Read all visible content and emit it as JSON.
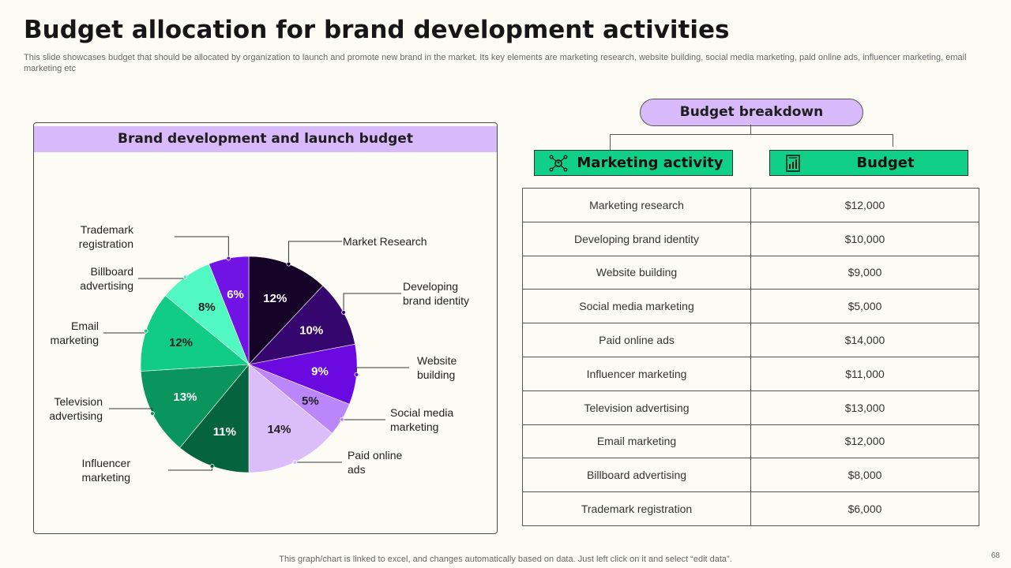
{
  "header": {
    "title": "Budget allocation for brand development activities",
    "subtitle": "This slide showcases budget that should be allocated by organization to launch and promote new brand in the market. Its key elements are marketing research, website building, social media marketing, paid online ads, influencer marketing, email marketing etc"
  },
  "chart_panel": {
    "title": "Brand development and launch budget"
  },
  "chart_data": {
    "type": "pie",
    "title": "Brand development and launch budget",
    "slices": [
      {
        "label": "Market Research",
        "value": 12,
        "display": "12%",
        "color": "#160428"
      },
      {
        "label": "Developing brand identity",
        "value": 10,
        "display": "10%",
        "color": "#35066e"
      },
      {
        "label": "Website building",
        "value": 9,
        "display": "9%",
        "color": "#6a0ae0"
      },
      {
        "label": "Social media marketing",
        "value": 5,
        "display": "5%",
        "color": "#bb86f9"
      },
      {
        "label": "Paid online ads",
        "value": 14,
        "display": "14%",
        "color": "#dbbdfa"
      },
      {
        "label": "Influencer marketing",
        "value": 11,
        "display": "11%",
        "color": "#05643d"
      },
      {
        "label": "Television advertising",
        "value": 13,
        "display": "13%",
        "color": "#09955c"
      },
      {
        "label": "Email marketing",
        "value": 12,
        "display": "12%",
        "color": "#10cc84"
      },
      {
        "label": "Billboard advertising",
        "value": 8,
        "display": "8%",
        "color": "#52f8c2"
      },
      {
        "label": "Trademark registration",
        "value": 6,
        "display": "6%",
        "color": "#7213e6"
      }
    ]
  },
  "breakdown": {
    "title": "Budget breakdown",
    "col_activity": "Marketing activity",
    "col_budget": "Budget",
    "rows": [
      {
        "activity": "Marketing research",
        "budget": "$12,000"
      },
      {
        "activity": "Developing brand identity",
        "budget": "$10,000"
      },
      {
        "activity": "Website building",
        "budget": "$9,000"
      },
      {
        "activity": "Social media marketing",
        "budget": "$5,000"
      },
      {
        "activity": "Paid online ads",
        "budget": "$14,000"
      },
      {
        "activity": "Influencer marketing",
        "budget": "$11,000"
      },
      {
        "activity": "Television advertising",
        "budget": "$13,000"
      },
      {
        "activity": "Email marketing",
        "budget": "$12,000"
      },
      {
        "activity": "Billboard advertising",
        "budget": "$8,000"
      },
      {
        "activity": "Trademark registration",
        "budget": "$6,000"
      }
    ]
  },
  "footer": {
    "note": "This graph/chart is linked to excel,  and changes automatically based on data. Just left click on it and select “edit data”.",
    "page_number": "68"
  },
  "icons": {
    "activity_icon": "marketing-network-icon",
    "budget_icon": "budget-chart-icon"
  },
  "colors": {
    "accent_purple": "#d8b9f9",
    "accent_green": "#10cf86"
  }
}
